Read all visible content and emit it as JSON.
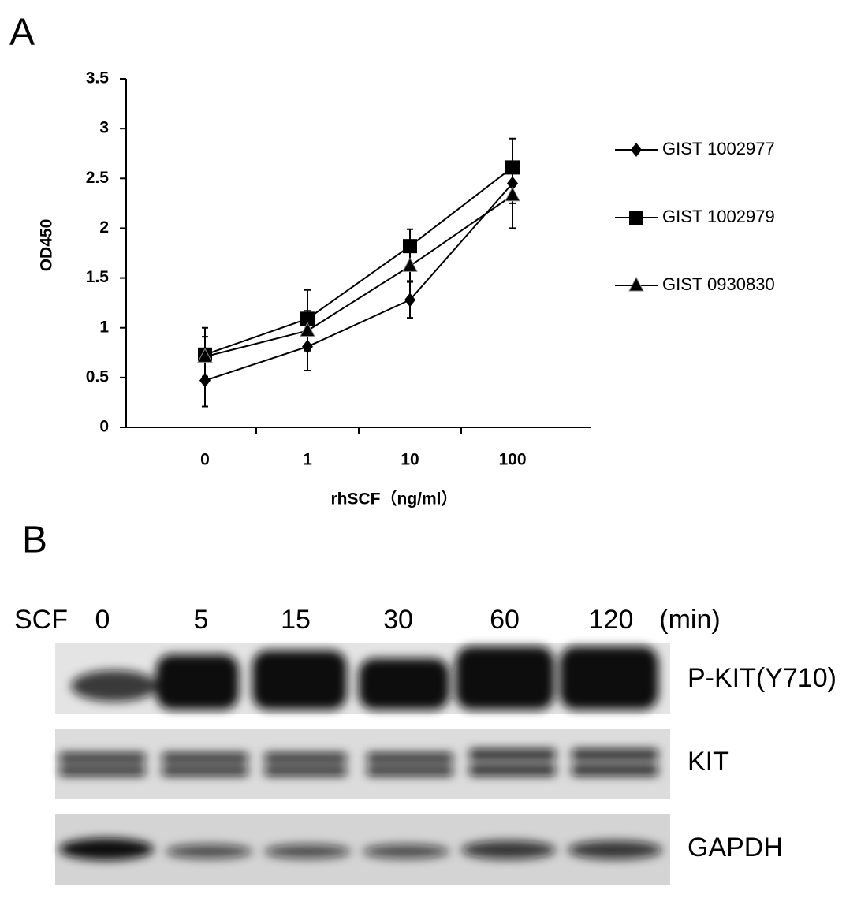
{
  "panel_labels": [
    "A",
    "B"
  ],
  "chart_data": {
    "type": "line",
    "categories": [
      "0",
      "1",
      "10",
      "100"
    ],
    "xlabel": "rhSCF（ng/ml）",
    "ylabel": "OD450",
    "ylim": [
      0,
      3.5
    ],
    "yticks": [
      0,
      0.5,
      1,
      1.5,
      2,
      2.5,
      3,
      3.5
    ],
    "legend": "right",
    "grid": false,
    "series": [
      {
        "name": "GIST 1002977",
        "color": "#000000",
        "marker": "diamond",
        "values": [
          0.47,
          0.81,
          1.28,
          2.45
        ],
        "errors": [
          0.26,
          0.24,
          0.18,
          0.2
        ]
      },
      {
        "name": "GIST 1002979",
        "color": "#000000",
        "marker": "square",
        "values": [
          0.73,
          1.09,
          1.82,
          2.61
        ],
        "errors": [
          0.27,
          0.29,
          0.17,
          0.29
        ]
      },
      {
        "name": "GIST 0930830",
        "color": "#000000",
        "marker": "triangle",
        "values": [
          0.71,
          0.97,
          1.62,
          2.33
        ],
        "errors": [
          0.2,
          0.2,
          0.15,
          0.33
        ]
      }
    ]
  },
  "blot": {
    "treatment": "SCF",
    "lanes": [
      "0",
      "5",
      "15",
      "30",
      "60",
      "120"
    ],
    "unit": "(min)",
    "rows": [
      "P-KIT(Y710)",
      "KIT",
      "GAPDH"
    ]
  }
}
